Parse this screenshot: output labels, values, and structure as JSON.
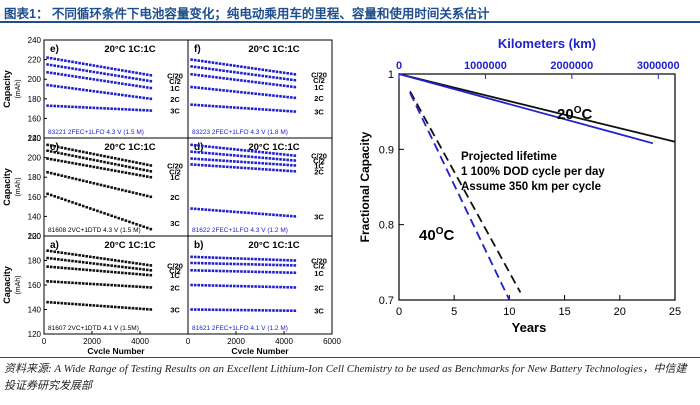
{
  "header": {
    "title": "图表1：  不同循环条件下电池容量变化；纯电动乘用车的里程、容量和使用时间关系估计"
  },
  "footer": {
    "source": "资料来源: A Wide Range of Testing Results on an Excellent Lithium-Ion Cell Chemistry to be used as Benchmarks for New Battery Technologies，中信建投证券研究发展部"
  },
  "colors": {
    "black_series": "#111111",
    "blue_series": "#2222cc",
    "accent": "#1f4e8c"
  },
  "chart_data": [
    {
      "id": "e",
      "type": "scatter",
      "panel_label": "e)",
      "condition": "20°C 1C:1C",
      "cell_text": "83221 2FEC+1LFO 4.3 V (1.5 M)",
      "ylabel": "Capacity",
      "yunit": "(mAh)",
      "ylim": [
        140,
        240
      ],
      "yticks": [
        140,
        160,
        180,
        200,
        220,
        240
      ],
      "xlim": [
        0,
        6000
      ],
      "series": [
        {
          "name": "C/20",
          "color": "blue",
          "start": 222,
          "end": 204
        },
        {
          "name": "C/2",
          "color": "blue",
          "start": 215,
          "end": 198
        },
        {
          "name": "1C",
          "color": "blue",
          "start": 207,
          "end": 191
        },
        {
          "name": "2C",
          "color": "blue",
          "start": 194,
          "end": 180
        },
        {
          "name": "3C",
          "color": "blue",
          "start": 173,
          "end": 168
        }
      ]
    },
    {
      "id": "f",
      "type": "scatter",
      "panel_label": "f)",
      "condition": "20°C 1C:1C",
      "cell_text": "83223 2FEC+1LFO 4.3 V (1.8 M)",
      "ylabel": "",
      "yunit": "",
      "ylim": [
        140,
        240
      ],
      "yticks": [],
      "xlim": [
        0,
        6000
      ],
      "series": [
        {
          "name": "C/20",
          "color": "blue",
          "start": 220,
          "end": 205
        },
        {
          "name": "C/2",
          "color": "blue",
          "start": 213,
          "end": 199
        },
        {
          "name": "1C",
          "color": "blue",
          "start": 205,
          "end": 192
        },
        {
          "name": "2C",
          "color": "blue",
          "start": 192,
          "end": 181
        },
        {
          "name": "3C",
          "color": "blue",
          "start": 174,
          "end": 167
        }
      ]
    },
    {
      "id": "c",
      "type": "scatter",
      "panel_label": "c)",
      "condition": "20°C 1C:1C",
      "cell_text": "81608 2VC+1DTD 4.3 V (1.5 M)",
      "ylabel": "Capacity",
      "yunit": "(mAh)",
      "ylim": [
        120,
        220
      ],
      "yticks": [
        120,
        140,
        160,
        180,
        200,
        220
      ],
      "xlim": [
        0,
        6000
      ],
      "series": [
        {
          "name": "C/20",
          "color": "black",
          "start": 213,
          "end": 192
        },
        {
          "name": "C/2",
          "color": "black",
          "start": 207,
          "end": 186
        },
        {
          "name": "1C",
          "color": "black",
          "start": 199,
          "end": 180
        },
        {
          "name": "2C",
          "color": "black",
          "start": 185,
          "end": 160
        },
        {
          "name": "3C",
          "color": "black",
          "start": 163,
          "end": 127
        }
      ]
    },
    {
      "id": "d",
      "type": "scatter",
      "panel_label": "d)",
      "condition": "20°C 1C:1C",
      "cell_text": "81622 2FEC+1LFO 4.3 V (1.2 M)",
      "ylabel": "",
      "yunit": "",
      "ylim": [
        120,
        220
      ],
      "yticks": [],
      "xlim": [
        0,
        6000
      ],
      "series": [
        {
          "name": "C/20",
          "color": "blue",
          "start": 213,
          "end": 202
        },
        {
          "name": "C/2",
          "color": "blue",
          "start": 206,
          "end": 197
        },
        {
          "name": "1C",
          "color": "blue",
          "start": 199,
          "end": 192
        },
        {
          "name": "2C",
          "color": "blue",
          "start": 193,
          "end": 186
        },
        {
          "name": "3C",
          "color": "blue",
          "start": 148,
          "end": 140
        }
      ]
    },
    {
      "id": "a",
      "type": "scatter",
      "panel_label": "a)",
      "condition": "20°C 1C:1C",
      "cell_text": "81607 2VC+1DTD 4.1 V (1.5M)",
      "ylabel": "Capacity",
      "yunit": "(mAh)",
      "ylim": [
        120,
        200
      ],
      "yticks": [
        120,
        140,
        160,
        180,
        200
      ],
      "xlim": [
        0,
        6000
      ],
      "xticks": [
        0,
        2000,
        4000
      ],
      "xlabel": "Cycle Number",
      "series": [
        {
          "name": "C/20",
          "color": "black",
          "start": 188,
          "end": 176
        },
        {
          "name": "C/2",
          "color": "black",
          "start": 182,
          "end": 172
        },
        {
          "name": "1C",
          "color": "black",
          "start": 175,
          "end": 168
        },
        {
          "name": "2C",
          "color": "black",
          "start": 163,
          "end": 158
        },
        {
          "name": "3C",
          "color": "black",
          "start": 146,
          "end": 140
        }
      ]
    },
    {
      "id": "b",
      "type": "scatter",
      "panel_label": "b)",
      "condition": "20°C 1C:1C",
      "cell_text": "81621 2FEC+1LFO 4.1 V (1.2 M)",
      "ylabel": "",
      "yunit": "",
      "ylim": [
        120,
        200
      ],
      "yticks": [],
      "xlim": [
        0,
        6000
      ],
      "xticks": [
        0,
        2000,
        4000,
        6000
      ],
      "xlabel": "Cycle Number",
      "series": [
        {
          "name": "C/20",
          "color": "blue",
          "start": 183,
          "end": 180
        },
        {
          "name": "C/2",
          "color": "blue",
          "start": 178,
          "end": 176
        },
        {
          "name": "1C",
          "color": "blue",
          "start": 172,
          "end": 170
        },
        {
          "name": "2C",
          "color": "blue",
          "start": 160,
          "end": 158
        },
        {
          "name": "3C",
          "color": "blue",
          "start": 140,
          "end": 139
        }
      ]
    },
    {
      "id": "lifetime",
      "type": "line",
      "ylabel": "Fractional Capacity",
      "xlabel": "Years",
      "top_xlabel": "Kilometers (km)",
      "xlim": [
        0,
        25
      ],
      "ylim": [
        0.7,
        1.0
      ],
      "xticks": [
        0,
        5,
        10,
        15,
        20,
        25
      ],
      "yticks": [
        0.7,
        0.8,
        0.9,
        1
      ],
      "top_xticks": [
        0,
        1000000,
        2000000,
        3000000
      ],
      "top_xtick_labels": [
        "0",
        "1000000",
        "2000000",
        "3000000"
      ],
      "top_axis_km_per_year": 127750,
      "annotations": [
        "Projected lifetime",
        "1 100% DOD cycle per day",
        "Assume 350 km per cycle"
      ],
      "temp_labels": {
        "t20": "20",
        "t40": "40",
        "unit": "C"
      },
      "series": [
        {
          "name": "20°C black",
          "color": "black",
          "dash": false,
          "x": [
            0,
            25
          ],
          "y": [
            1.0,
            0.91
          ]
        },
        {
          "name": "20°C blue",
          "color": "blue",
          "dash": false,
          "x": [
            0,
            23
          ],
          "y": [
            1.0,
            0.908
          ]
        },
        {
          "name": "40°C black",
          "color": "black",
          "dash": true,
          "x": [
            1,
            11
          ],
          "y": [
            0.977,
            0.71
          ]
        },
        {
          "name": "40°C blue",
          "color": "blue",
          "dash": true,
          "x": [
            1,
            10
          ],
          "y": [
            0.975,
            0.7
          ]
        }
      ]
    }
  ]
}
